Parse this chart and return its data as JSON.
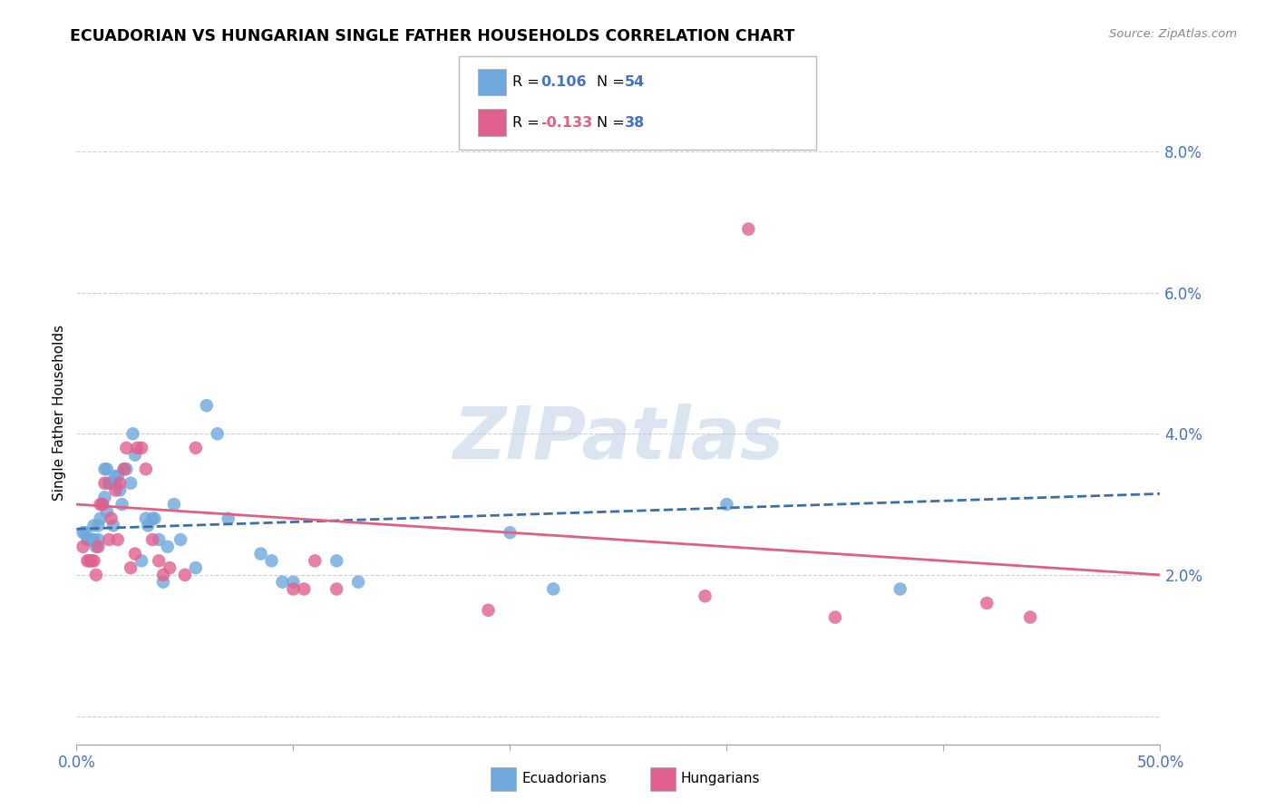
{
  "title": "ECUADORIAN VS HUNGARIAN SINGLE FATHER HOUSEHOLDS CORRELATION CHART",
  "source": "Source: ZipAtlas.com",
  "ylabel": "Single Father Households",
  "watermark": "ZIPatlas",
  "legend_blue_Rval": "0.106",
  "legend_blue_Nval": "54",
  "legend_pink_Rval": "-0.133",
  "legend_pink_Nval": "38",
  "xlim": [
    0.0,
    0.5
  ],
  "ylim": [
    -0.004,
    0.09
  ],
  "yticks": [
    0.0,
    0.02,
    0.04,
    0.06,
    0.08
  ],
  "ytick_labels": [
    "",
    "2.0%",
    "4.0%",
    "6.0%",
    "8.0%"
  ],
  "xticks": [
    0.0,
    0.1,
    0.2,
    0.3,
    0.4,
    0.5
  ],
  "xtick_labels": [
    "0.0%",
    "",
    "",
    "",
    "",
    "50.0%"
  ],
  "blue_color": "#6fa8dc",
  "pink_color": "#e06090",
  "blue_line_color": "#3a6fa8",
  "pink_line_color": "#e06080",
  "tick_color": "#4472c4",
  "grid_color": "#d0d0d0",
  "blue_scatter": [
    [
      0.003,
      0.026
    ],
    [
      0.004,
      0.026
    ],
    [
      0.005,
      0.025
    ],
    [
      0.006,
      0.025
    ],
    [
      0.007,
      0.025
    ],
    [
      0.008,
      0.025
    ],
    [
      0.008,
      0.027
    ],
    [
      0.009,
      0.024
    ],
    [
      0.01,
      0.025
    ],
    [
      0.01,
      0.027
    ],
    [
      0.011,
      0.028
    ],
    [
      0.012,
      0.03
    ],
    [
      0.013,
      0.031
    ],
    [
      0.013,
      0.035
    ],
    [
      0.014,
      0.029
    ],
    [
      0.014,
      0.035
    ],
    [
      0.015,
      0.033
    ],
    [
      0.015,
      0.033
    ],
    [
      0.016,
      0.033
    ],
    [
      0.017,
      0.027
    ],
    [
      0.018,
      0.033
    ],
    [
      0.018,
      0.034
    ],
    [
      0.019,
      0.034
    ],
    [
      0.02,
      0.032
    ],
    [
      0.021,
      0.03
    ],
    [
      0.022,
      0.035
    ],
    [
      0.023,
      0.035
    ],
    [
      0.025,
      0.033
    ],
    [
      0.026,
      0.04
    ],
    [
      0.027,
      0.037
    ],
    [
      0.03,
      0.022
    ],
    [
      0.032,
      0.028
    ],
    [
      0.033,
      0.027
    ],
    [
      0.035,
      0.028
    ],
    [
      0.036,
      0.028
    ],
    [
      0.038,
      0.025
    ],
    [
      0.04,
      0.019
    ],
    [
      0.042,
      0.024
    ],
    [
      0.045,
      0.03
    ],
    [
      0.048,
      0.025
    ],
    [
      0.055,
      0.021
    ],
    [
      0.06,
      0.044
    ],
    [
      0.065,
      0.04
    ],
    [
      0.07,
      0.028
    ],
    [
      0.085,
      0.023
    ],
    [
      0.09,
      0.022
    ],
    [
      0.095,
      0.019
    ],
    [
      0.1,
      0.019
    ],
    [
      0.12,
      0.022
    ],
    [
      0.13,
      0.019
    ],
    [
      0.2,
      0.026
    ],
    [
      0.22,
      0.018
    ],
    [
      0.3,
      0.03
    ],
    [
      0.38,
      0.018
    ]
  ],
  "pink_scatter": [
    [
      0.003,
      0.024
    ],
    [
      0.005,
      0.022
    ],
    [
      0.006,
      0.022
    ],
    [
      0.007,
      0.022
    ],
    [
      0.008,
      0.022
    ],
    [
      0.009,
      0.02
    ],
    [
      0.01,
      0.024
    ],
    [
      0.011,
      0.03
    ],
    [
      0.012,
      0.03
    ],
    [
      0.013,
      0.033
    ],
    [
      0.015,
      0.025
    ],
    [
      0.016,
      0.028
    ],
    [
      0.018,
      0.032
    ],
    [
      0.019,
      0.025
    ],
    [
      0.02,
      0.033
    ],
    [
      0.022,
      0.035
    ],
    [
      0.023,
      0.038
    ],
    [
      0.025,
      0.021
    ],
    [
      0.027,
      0.023
    ],
    [
      0.028,
      0.038
    ],
    [
      0.03,
      0.038
    ],
    [
      0.032,
      0.035
    ],
    [
      0.035,
      0.025
    ],
    [
      0.038,
      0.022
    ],
    [
      0.04,
      0.02
    ],
    [
      0.043,
      0.021
    ],
    [
      0.05,
      0.02
    ],
    [
      0.055,
      0.038
    ],
    [
      0.1,
      0.018
    ],
    [
      0.105,
      0.018
    ],
    [
      0.11,
      0.022
    ],
    [
      0.12,
      0.018
    ],
    [
      0.19,
      0.015
    ],
    [
      0.29,
      0.017
    ],
    [
      0.31,
      0.069
    ],
    [
      0.35,
      0.014
    ],
    [
      0.42,
      0.016
    ],
    [
      0.44,
      0.014
    ]
  ],
  "blue_trend": [
    0.0,
    0.5,
    0.0265,
    0.0315
  ],
  "pink_trend": [
    0.0,
    0.5,
    0.03,
    0.02
  ]
}
